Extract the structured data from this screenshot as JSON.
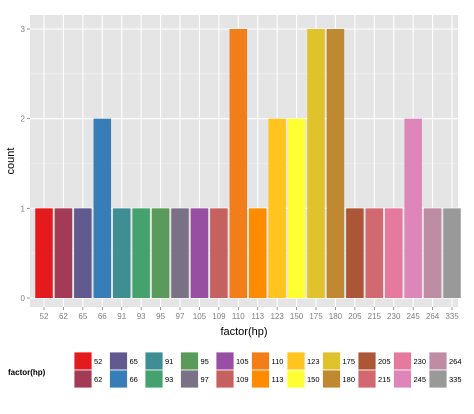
{
  "chart_data": {
    "type": "bar",
    "title": "",
    "xlabel": "factor(hp)",
    "ylabel": "count",
    "ylim": [
      0,
      3
    ],
    "yticks": [
      0,
      1,
      2,
      3
    ],
    "grid": true,
    "legend_position": "bottom",
    "legend_title": "factor(hp)",
    "categories": [
      "52",
      "62",
      "65",
      "66",
      "91",
      "93",
      "95",
      "97",
      "105",
      "109",
      "110",
      "113",
      "123",
      "150",
      "175",
      "180",
      "205",
      "215",
      "230",
      "245",
      "264",
      "335"
    ],
    "values": [
      1,
      1,
      1,
      2,
      1,
      1,
      1,
      1,
      1,
      1,
      3,
      1,
      2,
      2,
      3,
      3,
      1,
      1,
      1,
      2,
      1,
      1
    ],
    "colors": [
      "#E41A1C",
      "#A33B56",
      "#62598F",
      "#377EB8",
      "#3F8E94",
      "#45A26F",
      "#5A9A5B",
      "#7B7187",
      "#984EA3",
      "#C5625F",
      "#F27E1A",
      "#FF8C00",
      "#FFC51E",
      "#FFFF33",
      "#E0C22D",
      "#C08831",
      "#AC5637",
      "#D26971",
      "#E57A9E",
      "#DE86BA",
      "#BE8CA3",
      "#999999"
    ]
  }
}
